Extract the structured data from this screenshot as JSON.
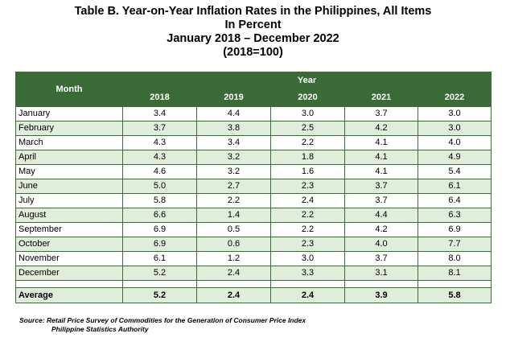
{
  "title": {
    "line1": "Table B. Year-on-Year Inflation Rates in the Philippines, All Items",
    "line2": "In Percent",
    "line3": "January 2018 – December 2022",
    "line4": "(2018=100)"
  },
  "table": {
    "month_header": "Month",
    "year_header": "Year",
    "years": [
      "2018",
      "2019",
      "2020",
      "2021",
      "2022"
    ],
    "rows": [
      {
        "month": "January",
        "values": [
          "3.4",
          "4.4",
          "3.0",
          "3.7",
          "3.0"
        ]
      },
      {
        "month": "February",
        "values": [
          "3.7",
          "3.8",
          "2.5",
          "4.2",
          "3.0"
        ]
      },
      {
        "month": "March",
        "values": [
          "4.3",
          "3.4",
          "2.2",
          "4.1",
          "4.0"
        ]
      },
      {
        "month": "April",
        "values": [
          "4.3",
          "3.2",
          "1.8",
          "4.1",
          "4.9"
        ]
      },
      {
        "month": "May",
        "values": [
          "4.6",
          "3.2",
          "1.6",
          "4.1",
          "5.4"
        ]
      },
      {
        "month": "June",
        "values": [
          "5.0",
          "2.7",
          "2.3",
          "3.7",
          "6.1"
        ]
      },
      {
        "month": "July",
        "values": [
          "5.8",
          "2.2",
          "2.4",
          "3.7",
          "6.4"
        ]
      },
      {
        "month": "August",
        "values": [
          "6.6",
          "1.4",
          "2.2",
          "4.4",
          "6.3"
        ]
      },
      {
        "month": "September",
        "values": [
          "6.9",
          "0.5",
          "2.2",
          "4.2",
          "6.9"
        ]
      },
      {
        "month": "October",
        "values": [
          "6.9",
          "0.6",
          "2.3",
          "4.0",
          "7.7"
        ]
      },
      {
        "month": "November",
        "values": [
          "6.1",
          "1.2",
          "3.0",
          "3.7",
          "8.0"
        ]
      },
      {
        "month": "December",
        "values": [
          "5.2",
          "2.4",
          "3.3",
          "3.1",
          "8.1"
        ]
      }
    ],
    "average": {
      "label": "Average",
      "values": [
        "5.2",
        "2.4",
        "2.4",
        "3.9",
        "5.8"
      ]
    }
  },
  "source": {
    "line1": "Source:  Retail Price Survey of Commodities for the Generation of Consumer Price Index",
    "line2": "Philippine Statistics Authority"
  },
  "colors": {
    "header_green": "#3a6b36",
    "row_alt_green": "#dfeed9",
    "border_green": "#3d6b3a"
  }
}
